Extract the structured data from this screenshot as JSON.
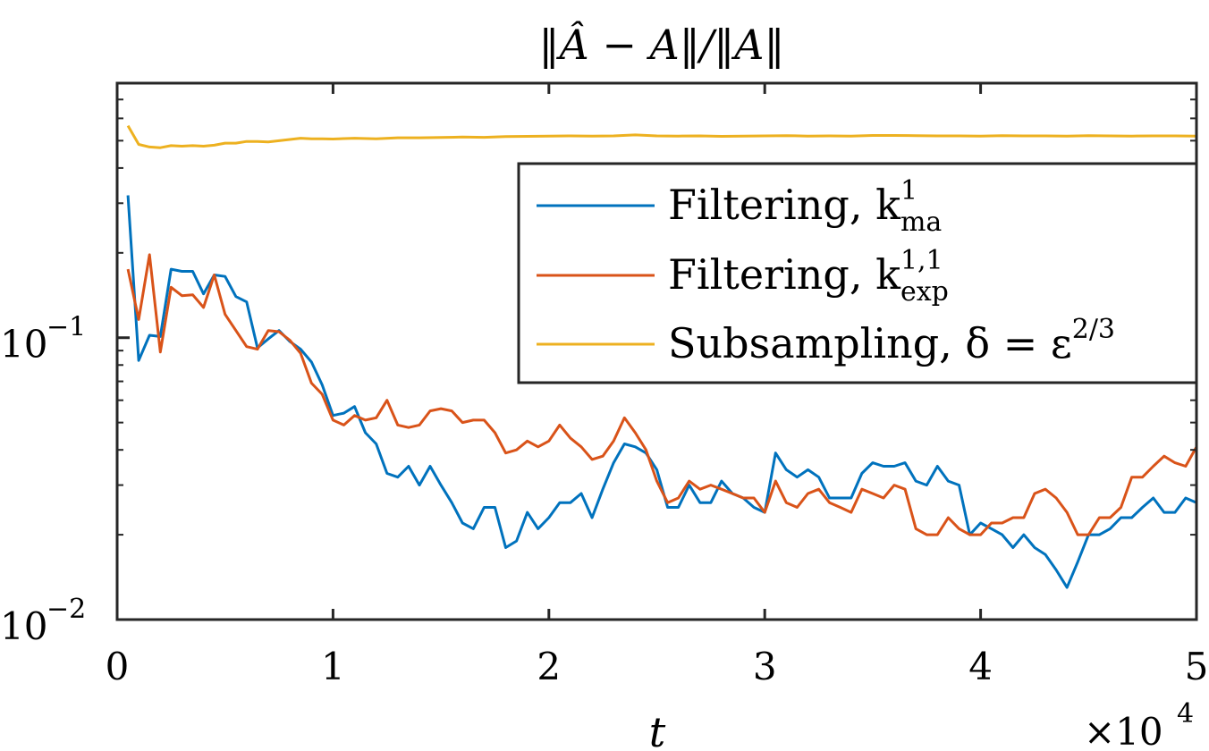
{
  "chart_data": {
    "type": "line",
    "title": "‖Â − A‖/‖A‖",
    "xlabel": "t",
    "x_multiplier_label": "×10",
    "x_multiplier_exp": "4",
    "ylabel": "",
    "xlim": [
      0,
      5
    ],
    "ylim": [
      0.01,
      0.8
    ],
    "yscale": "log",
    "grid": false,
    "legend_position": "top-right",
    "x_ticks": [
      "0",
      "1",
      "2",
      "3",
      "4",
      "5"
    ],
    "y_ticks": [
      {
        "base": "10",
        "exp": "−1",
        "value": 0.1
      },
      {
        "base": "10",
        "exp": "−2",
        "value": 0.01
      }
    ],
    "series": [
      {
        "name": "Filtering, k",
        "sup": "1",
        "sub": "ma",
        "color": "#0072BD",
        "x": [
          0.05,
          0.1,
          0.15,
          0.2,
          0.25,
          0.3,
          0.35,
          0.4,
          0.45,
          0.5,
          0.55,
          0.6,
          0.65,
          0.7,
          0.75,
          0.8,
          0.85,
          0.9,
          0.95,
          1.0,
          1.05,
          1.1,
          1.15,
          1.2,
          1.25,
          1.3,
          1.35,
          1.4,
          1.45,
          1.5,
          1.55,
          1.6,
          1.65,
          1.7,
          1.75,
          1.8,
          1.85,
          1.9,
          1.95,
          2.0,
          2.05,
          2.1,
          2.15,
          2.2,
          2.25,
          2.3,
          2.35,
          2.4,
          2.45,
          2.5,
          2.55,
          2.6,
          2.65,
          2.7,
          2.75,
          2.8,
          2.85,
          2.9,
          2.95,
          3.0,
          3.05,
          3.1,
          3.15,
          3.2,
          3.25,
          3.3,
          3.35,
          3.4,
          3.45,
          3.5,
          3.55,
          3.6,
          3.65,
          3.7,
          3.75,
          3.8,
          3.85,
          3.9,
          3.95,
          4.0,
          4.05,
          4.1,
          4.15,
          4.2,
          4.25,
          4.3,
          4.35,
          4.4,
          4.45,
          4.5,
          4.55,
          4.6,
          4.65,
          4.7,
          4.75,
          4.8,
          4.85,
          4.9,
          4.95,
          5.0
        ],
        "values": [
          0.32,
          0.083,
          0.102,
          0.101,
          0.175,
          0.172,
          0.172,
          0.143,
          0.167,
          0.165,
          0.14,
          0.134,
          0.092,
          0.099,
          0.106,
          0.097,
          0.091,
          0.082,
          0.068,
          0.053,
          0.054,
          0.057,
          0.046,
          0.042,
          0.033,
          0.032,
          0.035,
          0.03,
          0.035,
          0.03,
          0.026,
          0.022,
          0.021,
          0.025,
          0.025,
          0.018,
          0.019,
          0.024,
          0.021,
          0.023,
          0.026,
          0.026,
          0.028,
          0.023,
          0.029,
          0.036,
          0.042,
          0.041,
          0.039,
          0.034,
          0.025,
          0.025,
          0.03,
          0.026,
          0.026,
          0.031,
          0.028,
          0.027,
          0.025,
          0.024,
          0.039,
          0.034,
          0.032,
          0.034,
          0.032,
          0.027,
          0.027,
          0.027,
          0.033,
          0.036,
          0.035,
          0.035,
          0.036,
          0.031,
          0.03,
          0.035,
          0.031,
          0.03,
          0.02,
          0.022,
          0.021,
          0.02,
          0.018,
          0.02,
          0.018,
          0.017,
          0.015,
          0.013,
          0.016,
          0.02,
          0.02,
          0.021,
          0.023,
          0.023,
          0.025,
          0.027,
          0.024,
          0.024,
          0.027,
          0.026
        ]
      },
      {
        "name": "Filtering, k",
        "sup": "1,1",
        "sub": "exp",
        "color": "#D95319",
        "x": [
          0.05,
          0.1,
          0.15,
          0.2,
          0.25,
          0.3,
          0.35,
          0.4,
          0.45,
          0.5,
          0.55,
          0.6,
          0.65,
          0.7,
          0.75,
          0.8,
          0.85,
          0.9,
          0.95,
          1.0,
          1.05,
          1.1,
          1.15,
          1.2,
          1.25,
          1.3,
          1.35,
          1.4,
          1.45,
          1.5,
          1.55,
          1.6,
          1.65,
          1.7,
          1.75,
          1.8,
          1.85,
          1.9,
          1.95,
          2.0,
          2.05,
          2.1,
          2.15,
          2.2,
          2.25,
          2.3,
          2.35,
          2.4,
          2.45,
          2.5,
          2.55,
          2.6,
          2.65,
          2.7,
          2.75,
          2.8,
          2.85,
          2.9,
          2.95,
          3.0,
          3.05,
          3.1,
          3.15,
          3.2,
          3.25,
          3.3,
          3.35,
          3.4,
          3.45,
          3.5,
          3.55,
          3.6,
          3.65,
          3.7,
          3.75,
          3.8,
          3.85,
          3.9,
          3.95,
          4.0,
          4.05,
          4.1,
          4.15,
          4.2,
          4.25,
          4.3,
          4.35,
          4.4,
          4.45,
          4.5,
          4.55,
          4.6,
          4.65,
          4.7,
          4.75,
          4.8,
          4.85,
          4.9,
          4.95,
          5.0
        ],
        "values": [
          0.175,
          0.116,
          0.197,
          0.089,
          0.151,
          0.141,
          0.142,
          0.128,
          0.167,
          0.121,
          0.106,
          0.093,
          0.091,
          0.106,
          0.105,
          0.098,
          0.088,
          0.069,
          0.063,
          0.051,
          0.049,
          0.053,
          0.051,
          0.052,
          0.06,
          0.049,
          0.048,
          0.049,
          0.055,
          0.056,
          0.055,
          0.05,
          0.051,
          0.051,
          0.046,
          0.039,
          0.04,
          0.043,
          0.041,
          0.043,
          0.049,
          0.044,
          0.041,
          0.037,
          0.038,
          0.043,
          0.052,
          0.046,
          0.04,
          0.031,
          0.026,
          0.027,
          0.031,
          0.029,
          0.03,
          0.029,
          0.028,
          0.027,
          0.027,
          0.024,
          0.031,
          0.026,
          0.025,
          0.028,
          0.029,
          0.026,
          0.025,
          0.024,
          0.029,
          0.028,
          0.027,
          0.03,
          0.029,
          0.021,
          0.02,
          0.02,
          0.023,
          0.021,
          0.02,
          0.02,
          0.022,
          0.022,
          0.023,
          0.023,
          0.028,
          0.029,
          0.027,
          0.024,
          0.02,
          0.02,
          0.023,
          0.023,
          0.025,
          0.032,
          0.032,
          0.035,
          0.038,
          0.036,
          0.035,
          0.041
        ]
      },
      {
        "name": "Subsampling, δ = ε",
        "sup": "2/3",
        "sub": "",
        "color": "#EDB120",
        "x": [
          0.05,
          0.1,
          0.15,
          0.2,
          0.25,
          0.3,
          0.35,
          0.4,
          0.45,
          0.5,
          0.55,
          0.6,
          0.65,
          0.7,
          0.75,
          0.8,
          0.85,
          0.9,
          0.95,
          1.0,
          1.1,
          1.2,
          1.3,
          1.4,
          1.5,
          1.6,
          1.7,
          1.8,
          1.9,
          2.0,
          2.1,
          2.2,
          2.3,
          2.4,
          2.5,
          2.6,
          2.7,
          2.8,
          2.9,
          3.0,
          3.1,
          3.2,
          3.3,
          3.4,
          3.5,
          3.6,
          3.7,
          3.8,
          3.9,
          4.0,
          4.1,
          4.2,
          4.3,
          4.4,
          4.5,
          4.6,
          4.7,
          4.8,
          4.9,
          5.0
        ],
        "values": [
          0.565,
          0.485,
          0.475,
          0.472,
          0.48,
          0.478,
          0.48,
          0.478,
          0.482,
          0.49,
          0.49,
          0.497,
          0.497,
          0.495,
          0.5,
          0.505,
          0.51,
          0.508,
          0.508,
          0.507,
          0.51,
          0.508,
          0.512,
          0.512,
          0.513,
          0.515,
          0.514,
          0.517,
          0.518,
          0.519,
          0.52,
          0.519,
          0.52,
          0.524,
          0.52,
          0.519,
          0.52,
          0.518,
          0.519,
          0.52,
          0.521,
          0.519,
          0.52,
          0.519,
          0.522,
          0.522,
          0.521,
          0.52,
          0.52,
          0.519,
          0.521,
          0.52,
          0.52,
          0.519,
          0.521,
          0.52,
          0.519,
          0.52,
          0.52,
          0.519
        ]
      }
    ]
  }
}
